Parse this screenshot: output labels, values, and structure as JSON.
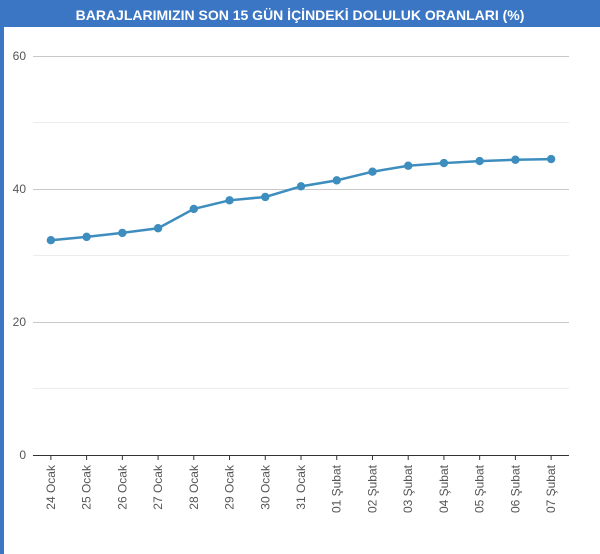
{
  "chart_data": {
    "type": "line",
    "title": "BARAJLARIMIZIN SON 15 GÜN İÇİNDEKİ DOLULUK ORANLARI (%)",
    "xlabel": "",
    "ylabel": "",
    "categories": [
      "24 Ocak",
      "25 Ocak",
      "26 Ocak",
      "27 Ocak",
      "28 Ocak",
      "29 Ocak",
      "30 Ocak",
      "31 Ocak",
      "01 Şubat",
      "02 Şubat",
      "03 Şubat",
      "04 Şubat",
      "05 Şubat",
      "06 Şubat",
      "07 Şubat"
    ],
    "values": [
      32.3,
      32.8,
      33.4,
      34.1,
      37.0,
      38.3,
      38.8,
      40.4,
      41.3,
      42.6,
      43.5,
      43.9,
      44.2,
      44.4,
      44.5
    ],
    "ylim": [
      0,
      60
    ],
    "yticks": [
      "0",
      "20",
      "40",
      "60"
    ],
    "grid": true,
    "colors": {
      "line": "#3d8dbe",
      "title_bg": "#3a76c4"
    }
  }
}
